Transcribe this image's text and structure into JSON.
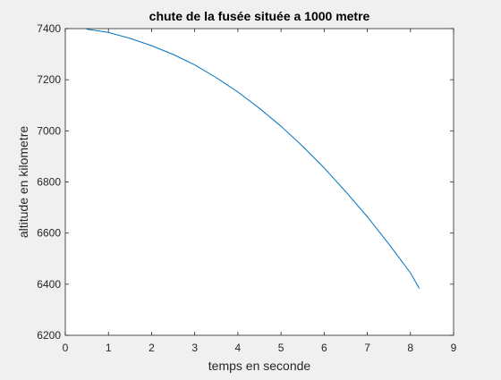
{
  "chart_data": {
    "type": "line",
    "title": "chute de la fusée située a 1000 metre",
    "xlabel": "temps en seconde",
    "ylabel": "altitude en kilometre",
    "xlim": [
      0,
      9
    ],
    "ylim": [
      6200,
      7400
    ],
    "xticks": [
      0,
      1,
      2,
      3,
      4,
      5,
      6,
      7,
      8,
      9
    ],
    "yticks": [
      6200,
      6400,
      6600,
      6800,
      7000,
      7200,
      7400
    ],
    "grid": false,
    "legend": "none",
    "series": [
      {
        "color": "#0072bd",
        "x": [
          0.5,
          1,
          1.5,
          2,
          2.5,
          3,
          3.5,
          4,
          4.5,
          5,
          5.5,
          6,
          6.5,
          7,
          7.5,
          8,
          8.2
        ],
        "y": [
          7398,
          7385,
          7362,
          7333,
          7299,
          7258,
          7208,
          7152,
          7088,
          7018,
          6940,
          6855,
          6762,
          6664,
          6557,
          6444,
          6385
        ]
      }
    ]
  }
}
